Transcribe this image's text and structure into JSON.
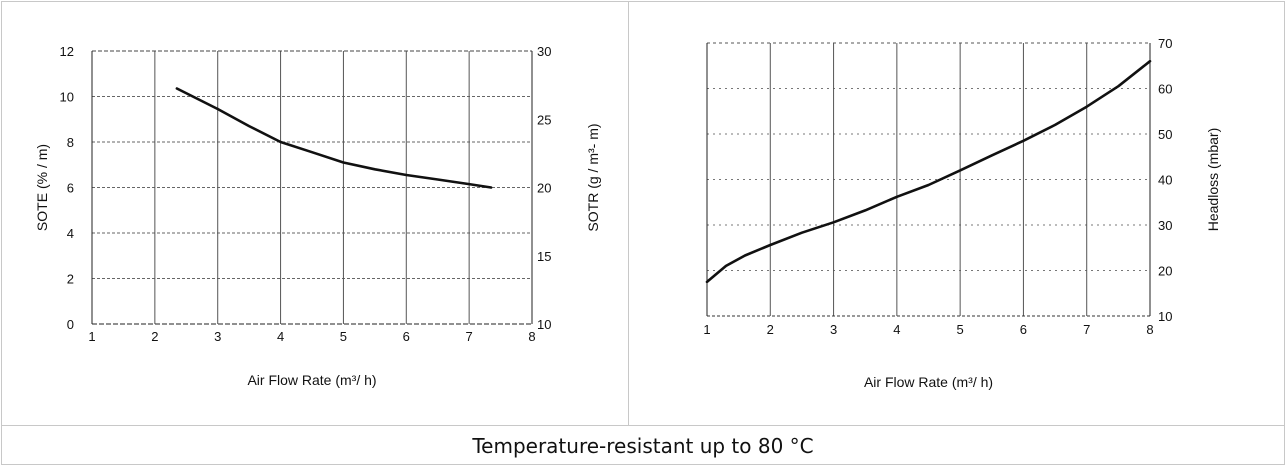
{
  "caption": "Temperature-resistant up to 80 °C",
  "chart_data": [
    {
      "type": "line",
      "xlabel": "Air Flow Rate (m³/ h)",
      "ylabel": "SOTE (% / m)",
      "y2label": "SOTR (g / m³- m)",
      "xlim": [
        1,
        8
      ],
      "ylim": [
        0,
        12
      ],
      "y2lim": [
        10,
        30
      ],
      "x_ticks": [
        1,
        2,
        3,
        4,
        5,
        6,
        7,
        8
      ],
      "y_ticks": [
        0,
        2,
        4,
        6,
        8,
        10,
        12
      ],
      "y2_ticks": [
        10,
        15,
        20,
        25,
        30
      ],
      "grid": true,
      "series": [
        {
          "x": [
            2.35,
            3.0,
            3.5,
            4.0,
            4.5,
            5.0,
            5.5,
            6.0,
            6.5,
            7.0,
            7.35
          ],
          "y": [
            10.35,
            9.45,
            8.7,
            8.0,
            7.55,
            7.1,
            6.8,
            6.55,
            6.35,
            6.15,
            6.0
          ]
        }
      ]
    },
    {
      "type": "line",
      "xlabel": "Air Flow Rate (m³/ h)",
      "y2label": "Headloss (mbar)",
      "xlim": [
        1,
        8
      ],
      "y2lim": [
        10,
        70
      ],
      "x_ticks": [
        1,
        2,
        3,
        4,
        5,
        6,
        7,
        8
      ],
      "y2_ticks": [
        10,
        20,
        30,
        40,
        50,
        60,
        70
      ],
      "grid": true,
      "series": [
        {
          "x": [
            1.0,
            1.3,
            1.6,
            2.0,
            2.5,
            3.0,
            3.5,
            4.0,
            4.5,
            5.0,
            5.5,
            6.0,
            6.5,
            7.0,
            7.5,
            8.0
          ],
          "y": [
            17.5,
            21.0,
            23.3,
            25.6,
            28.3,
            30.6,
            33.2,
            36.2,
            38.8,
            42.0,
            45.3,
            48.5,
            52.0,
            56.0,
            60.5,
            66.0
          ]
        }
      ]
    }
  ]
}
